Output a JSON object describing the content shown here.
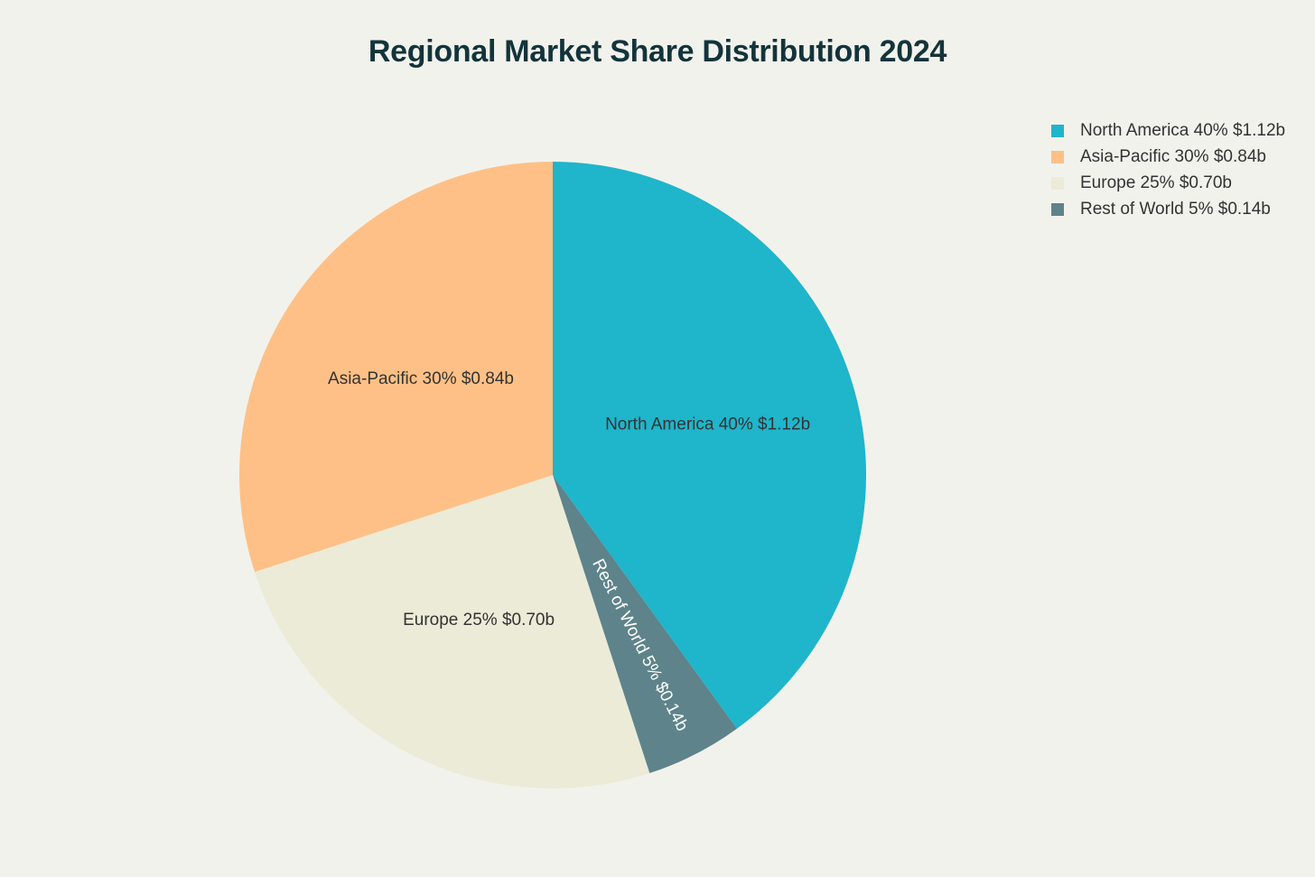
{
  "chart_data": {
    "type": "pie",
    "title": "Regional Market Share Distribution 2024",
    "legend_position": "top-right",
    "slices": [
      {
        "name": "North America",
        "percent": 40,
        "value": "$1.12b",
        "label": "North America 40% $1.12b",
        "color": "#1fb5cb"
      },
      {
        "name": "Rest of World",
        "percent": 5,
        "value": "$0.14b",
        "label": "Rest of World 5% $0.14b",
        "color": "#5e838a"
      },
      {
        "name": "Europe",
        "percent": 25,
        "value": "$0.70b",
        "label": "Europe 25% $0.70b",
        "color": "#ecebd8"
      },
      {
        "name": "Asia-Pacific",
        "percent": 30,
        "value": "$0.84b",
        "label": "Asia-Pacific 30% $0.84b",
        "color": "#fec086"
      }
    ],
    "legend": [
      {
        "label": "North America 40% $1.12b",
        "color": "#1fb5cb"
      },
      {
        "label": "Asia-Pacific 30% $0.84b",
        "color": "#fec086"
      },
      {
        "label": "Europe 25% $0.70b",
        "color": "#ecebd8"
      },
      {
        "label": "Rest of World 5% $0.14b",
        "color": "#5e838a"
      }
    ]
  }
}
